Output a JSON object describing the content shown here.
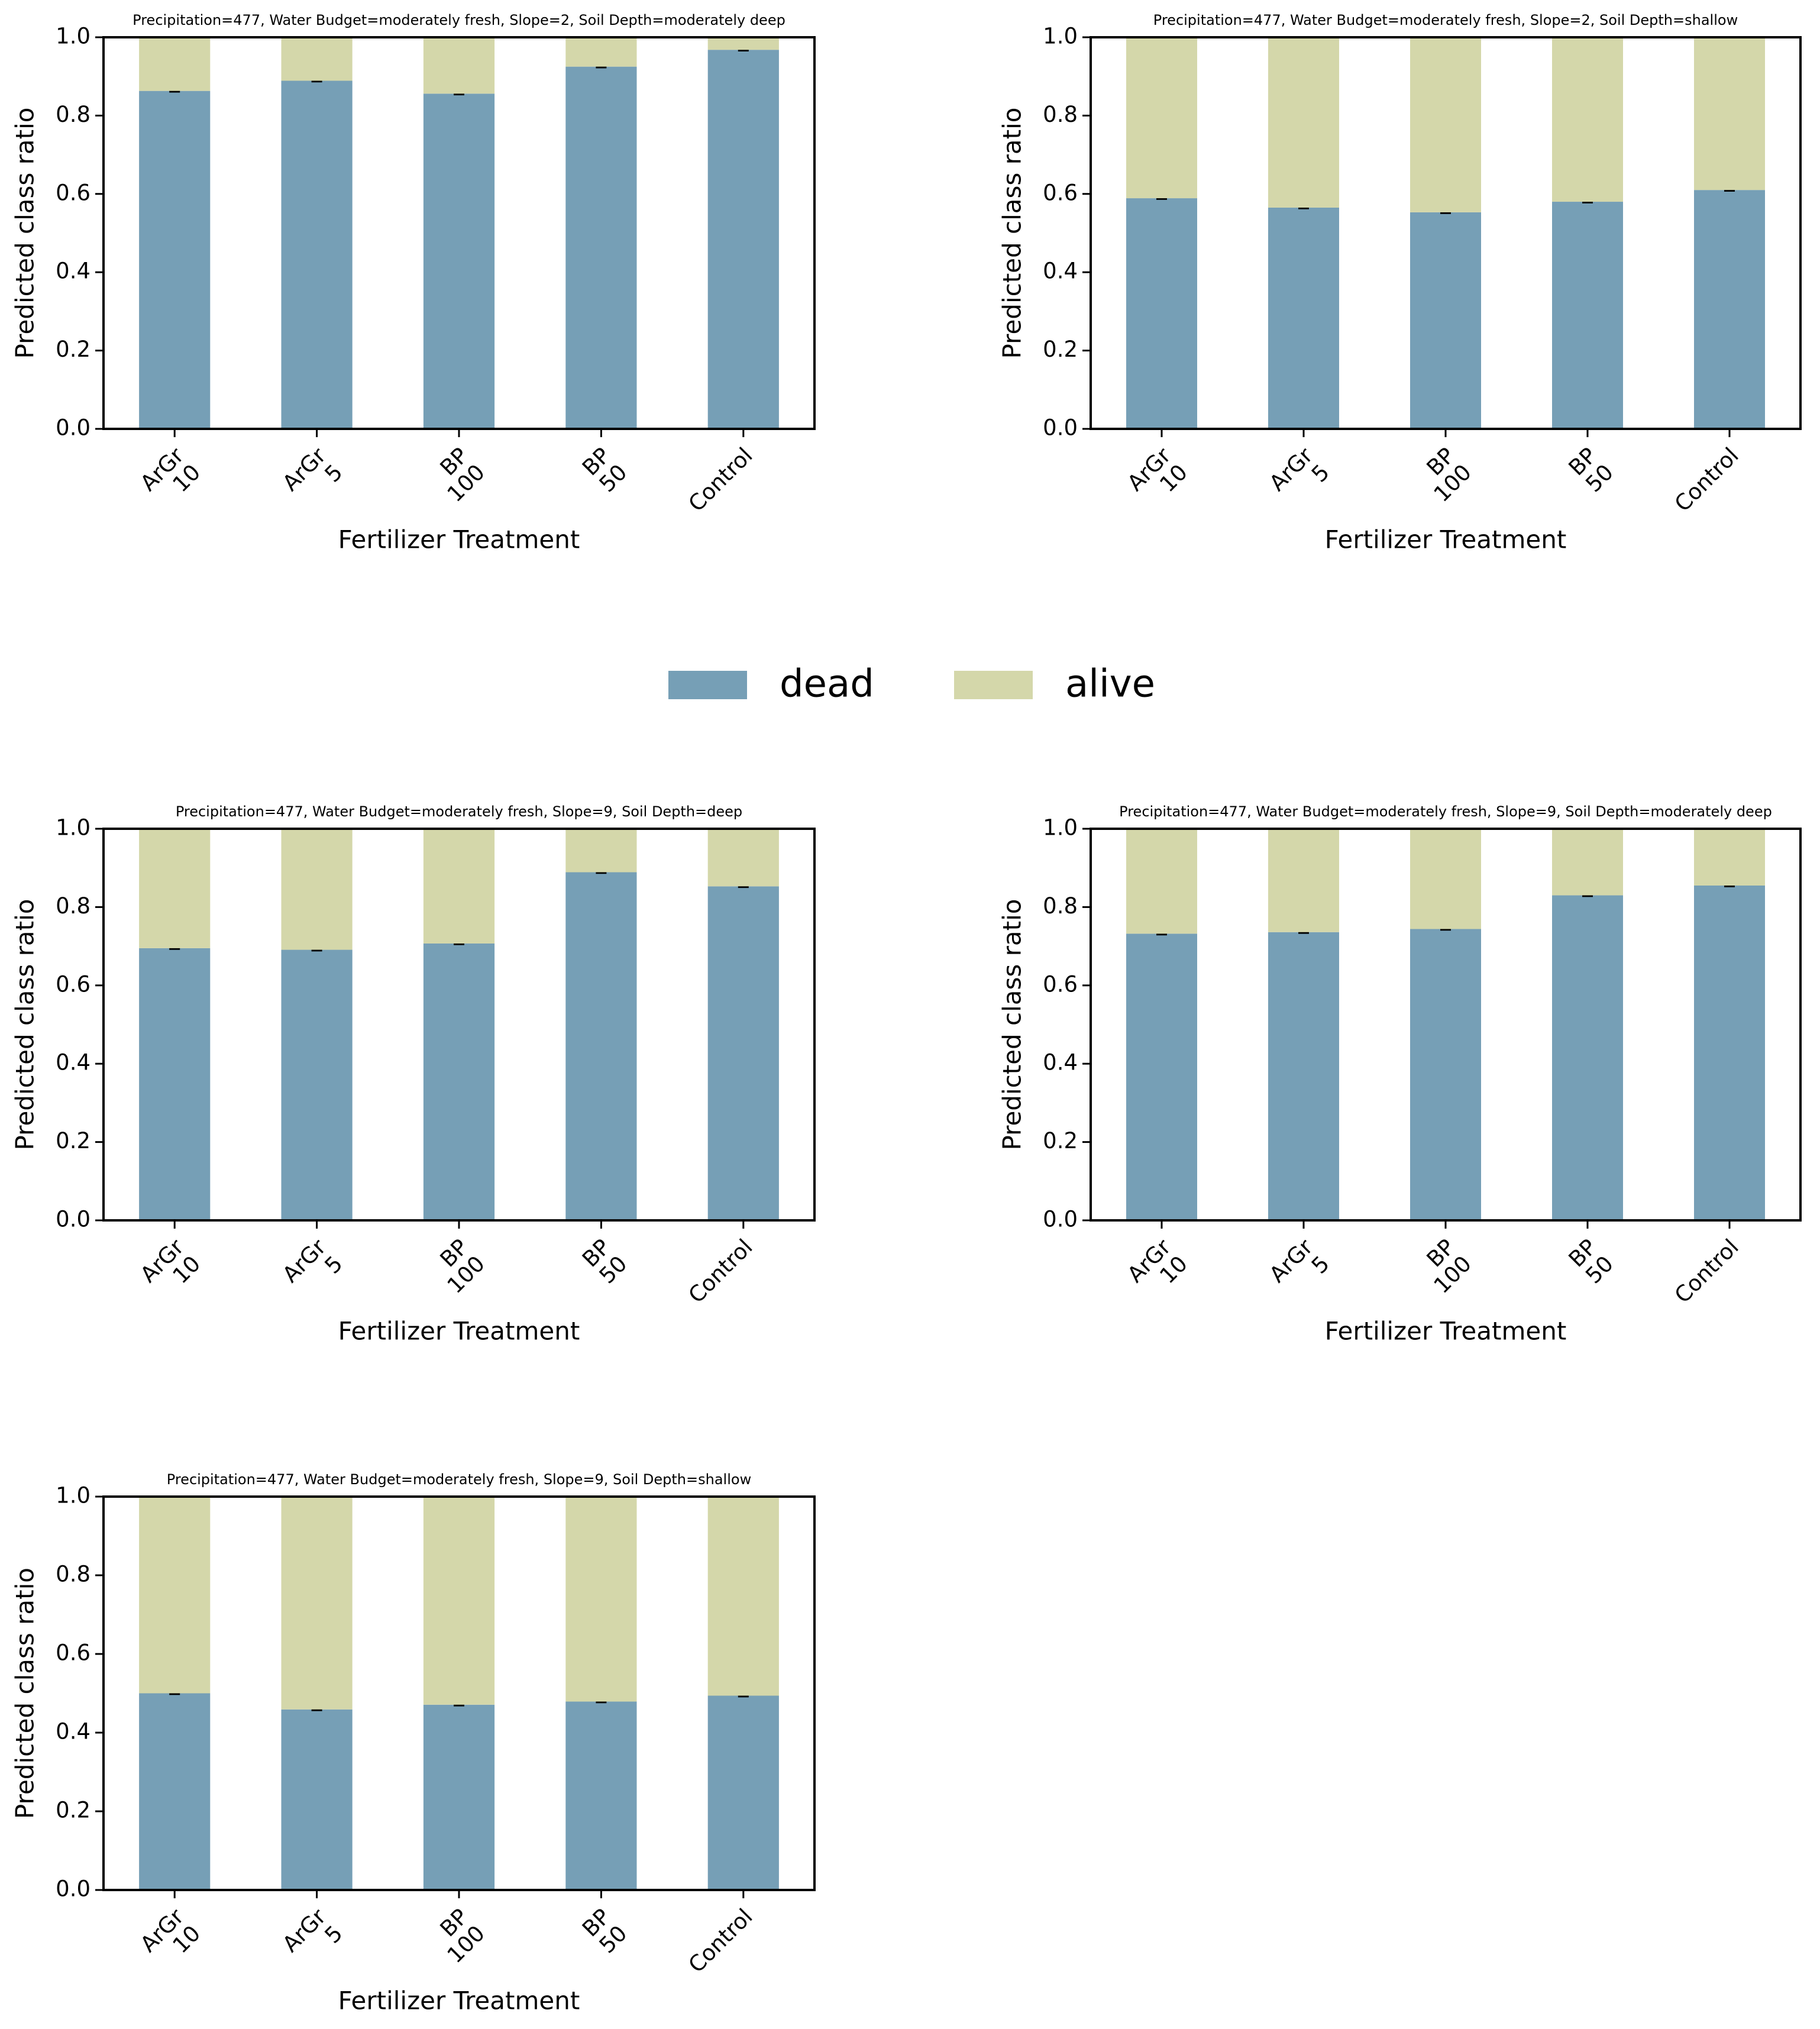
{
  "chart_data": [
    {
      "type": "stacked-bar",
      "title": "Precipitation=477, Water Budget=moderately fresh, Slope=2, Soil Depth=moderately deep",
      "x_label": "Fertilizer Treatment",
      "y_label": "Predicted class ratio",
      "categories": [
        [
          "ArGr",
          "10"
        ],
        [
          "ArGr",
          "5"
        ],
        [
          "BP",
          "100"
        ],
        [
          "BP",
          "50"
        ],
        [
          "Control"
        ]
      ],
      "series": [
        {
          "name": "dead",
          "color": "#769fb6",
          "values": [
            0.863,
            0.889,
            0.856,
            0.925,
            0.968
          ],
          "errors": [
            0.002,
            0.002,
            0.002,
            0.002,
            0.002
          ]
        },
        {
          "name": "alive",
          "color": "#d4d7aa",
          "values": [
            0.137,
            0.111,
            0.144,
            0.075,
            0.032
          ]
        }
      ],
      "ylim": [
        0,
        1
      ],
      "yticks": [
        {
          "value": 0,
          "label": "0.0"
        },
        {
          "value": 0.2,
          "label": "0.2"
        },
        {
          "value": 0.4,
          "label": "0.4"
        },
        {
          "value": 0.6,
          "label": "0.6"
        },
        {
          "value": 0.8,
          "label": "0.8"
        },
        {
          "value": 1,
          "label": "1.0"
        }
      ]
    },
    {
      "type": "stacked-bar",
      "title": "Precipitation=477, Water Budget=moderately fresh, Slope=2, Soil Depth=shallow",
      "x_label": "Fertilizer Treatment",
      "y_label": "Predicted class ratio",
      "categories": [
        [
          "ArGr",
          "10"
        ],
        [
          "ArGr",
          "5"
        ],
        [
          "BP",
          "100"
        ],
        [
          "BP",
          "50"
        ],
        [
          "Control"
        ]
      ],
      "series": [
        {
          "name": "dead",
          "color": "#769fb6",
          "values": [
            0.589,
            0.565,
            0.553,
            0.58,
            0.61
          ],
          "errors": [
            0.002,
            0.002,
            0.002,
            0.002,
            0.002
          ]
        },
        {
          "name": "alive",
          "color": "#d4d7aa",
          "values": [
            0.411,
            0.435,
            0.447,
            0.42,
            0.39
          ]
        }
      ],
      "ylim": [
        0,
        1
      ],
      "yticks": [
        {
          "value": 0,
          "label": "0.0"
        },
        {
          "value": 0.2,
          "label": "0.2"
        },
        {
          "value": 0.4,
          "label": "0.4"
        },
        {
          "value": 0.6,
          "label": "0.6"
        },
        {
          "value": 0.8,
          "label": "0.8"
        },
        {
          "value": 1,
          "label": "1.0"
        }
      ]
    },
    {
      "type": "stacked-bar",
      "title": "Precipitation=477, Water Budget=moderately fresh, Slope=9, Soil Depth=deep",
      "x_label": "Fertilizer Treatment",
      "y_label": "Predicted class ratio",
      "categories": [
        [
          "ArGr",
          "10"
        ],
        [
          "ArGr",
          "5"
        ],
        [
          "BP",
          "100"
        ],
        [
          "BP",
          "50"
        ],
        [
          "Control"
        ]
      ],
      "series": [
        {
          "name": "dead",
          "color": "#769fb6",
          "values": [
            0.695,
            0.691,
            0.707,
            0.889,
            0.853
          ],
          "errors": [
            0.002,
            0.002,
            0.002,
            0.002,
            0.002
          ]
        },
        {
          "name": "alive",
          "color": "#d4d7aa",
          "values": [
            0.305,
            0.309,
            0.293,
            0.111,
            0.147
          ]
        }
      ],
      "ylim": [
        0,
        1
      ],
      "yticks": [
        {
          "value": 0,
          "label": "0.0"
        },
        {
          "value": 0.2,
          "label": "0.2"
        },
        {
          "value": 0.4,
          "label": "0.4"
        },
        {
          "value": 0.6,
          "label": "0.6"
        },
        {
          "value": 0.8,
          "label": "0.8"
        },
        {
          "value": 1,
          "label": "1.0"
        }
      ]
    },
    {
      "type": "stacked-bar",
      "title": "Precipitation=477, Water Budget=moderately fresh, Slope=9, Soil Depth=moderately deep",
      "x_label": "Fertilizer Treatment",
      "y_label": "Predicted class ratio",
      "categories": [
        [
          "ArGr",
          "10"
        ],
        [
          "ArGr",
          "5"
        ],
        [
          "BP",
          "100"
        ],
        [
          "BP",
          "50"
        ],
        [
          "Control"
        ]
      ],
      "series": [
        {
          "name": "dead",
          "color": "#769fb6",
          "values": [
            0.732,
            0.736,
            0.744,
            0.83,
            0.855
          ],
          "errors": [
            0.002,
            0.002,
            0.002,
            0.002,
            0.002
          ]
        },
        {
          "name": "alive",
          "color": "#d4d7aa",
          "values": [
            0.268,
            0.264,
            0.256,
            0.17,
            0.145
          ]
        }
      ],
      "ylim": [
        0,
        1
      ],
      "yticks": [
        {
          "value": 0,
          "label": "0.0"
        },
        {
          "value": 0.2,
          "label": "0.2"
        },
        {
          "value": 0.4,
          "label": "0.4"
        },
        {
          "value": 0.6,
          "label": "0.6"
        },
        {
          "value": 0.8,
          "label": "0.8"
        },
        {
          "value": 1,
          "label": "1.0"
        }
      ]
    },
    {
      "type": "stacked-bar",
      "title": "Precipitation=477, Water Budget=moderately fresh, Slope=9, Soil Depth=shallow",
      "x_label": "Fertilizer Treatment",
      "y_label": "Predicted class ratio",
      "categories": [
        [
          "ArGr",
          "10"
        ],
        [
          "ArGr",
          "5"
        ],
        [
          "BP",
          "100"
        ],
        [
          "BP",
          "50"
        ],
        [
          "Control"
        ]
      ],
      "series": [
        {
          "name": "dead",
          "color": "#769fb6",
          "values": [
            0.5,
            0.459,
            0.471,
            0.479,
            0.494
          ],
          "errors": [
            0.002,
            0.002,
            0.002,
            0.002,
            0.002
          ]
        },
        {
          "name": "alive",
          "color": "#d4d7aa",
          "values": [
            0.5,
            0.541,
            0.529,
            0.521,
            0.506
          ]
        }
      ],
      "ylim": [
        0,
        1
      ],
      "yticks": [
        {
          "value": 0,
          "label": "0.0"
        },
        {
          "value": 0.2,
          "label": "0.2"
        },
        {
          "value": 0.4,
          "label": "0.4"
        },
        {
          "value": 0.6,
          "label": "0.6"
        },
        {
          "value": 0.8,
          "label": "0.8"
        },
        {
          "value": 1,
          "label": "1.0"
        }
      ]
    }
  ]
}
